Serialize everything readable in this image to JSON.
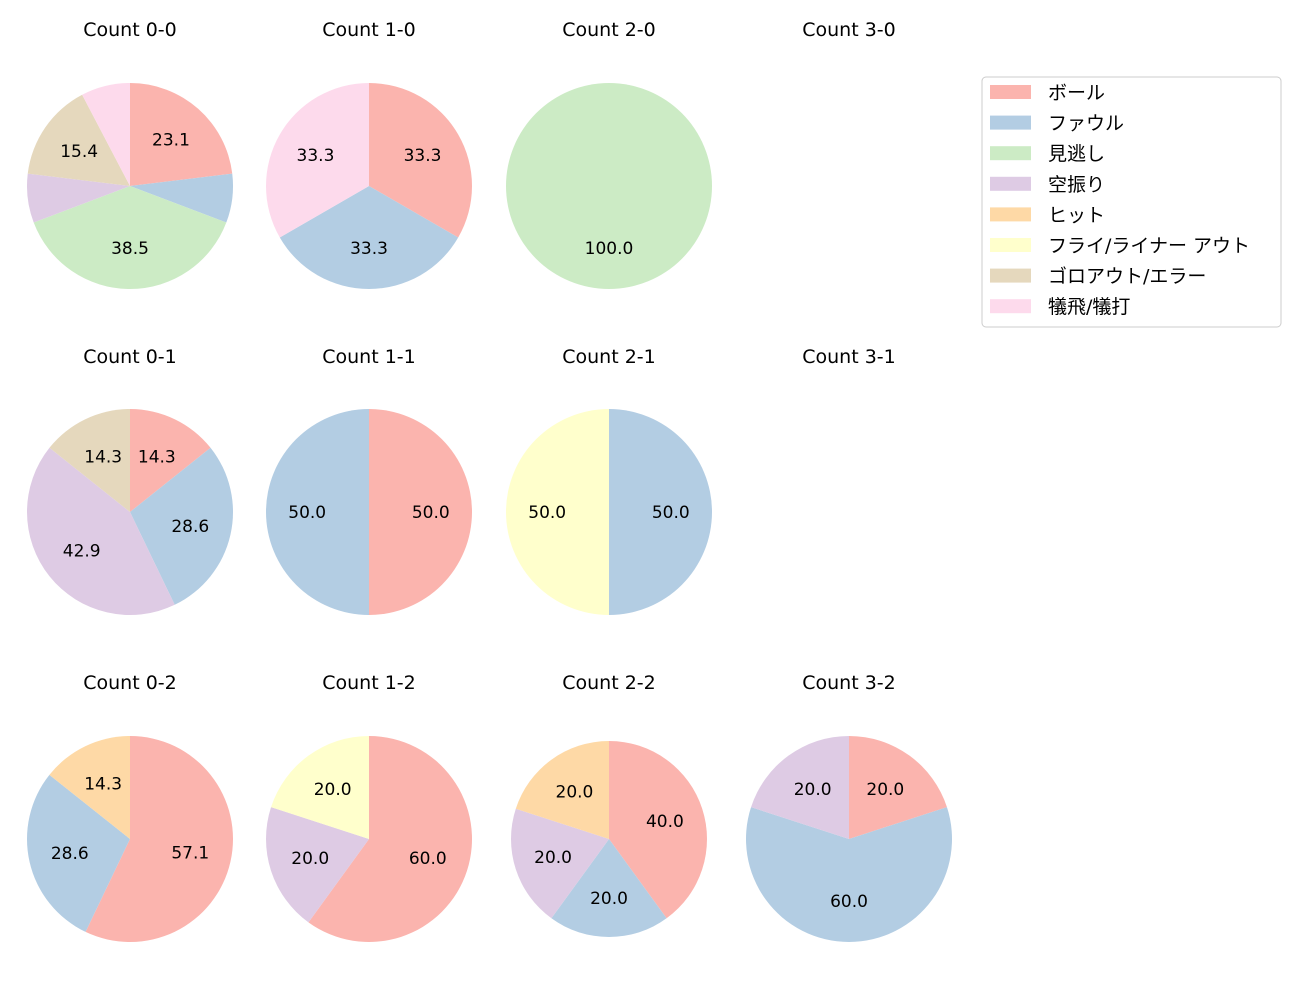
{
  "chart_data": [
    {
      "type": "pie",
      "title": "Count 0-0",
      "slices": [
        {
          "category": "ボール",
          "value": 23.1
        },
        {
          "category": "ファウル",
          "value": 7.7
        },
        {
          "category": "見逃し",
          "value": 38.5
        },
        {
          "category": "空振り",
          "value": 7.7
        },
        {
          "category": "ゴロアウト/エラー",
          "value": 15.4
        },
        {
          "category": "犠飛/犠打",
          "value": 7.7
        }
      ]
    },
    {
      "type": "pie",
      "title": "Count 1-0",
      "slices": [
        {
          "category": "ボール",
          "value": 33.3
        },
        {
          "category": "ファウル",
          "value": 33.3
        },
        {
          "category": "犠飛/犠打",
          "value": 33.3
        }
      ]
    },
    {
      "type": "pie",
      "title": "Count 2-0",
      "slices": [
        {
          "category": "見逃し",
          "value": 100.0
        }
      ]
    },
    {
      "type": "pie",
      "title": "Count 3-0",
      "slices": []
    },
    {
      "type": "pie",
      "title": "Count 0-1",
      "slices": [
        {
          "category": "ボール",
          "value": 14.3
        },
        {
          "category": "ファウル",
          "value": 28.6
        },
        {
          "category": "空振り",
          "value": 42.9
        },
        {
          "category": "ゴロアウト/エラー",
          "value": 14.3
        }
      ]
    },
    {
      "type": "pie",
      "title": "Count 1-1",
      "slices": [
        {
          "category": "ボール",
          "value": 50.0
        },
        {
          "category": "ファウル",
          "value": 50.0
        }
      ]
    },
    {
      "type": "pie",
      "title": "Count 2-1",
      "slices": [
        {
          "category": "ファウル",
          "value": 50.0
        },
        {
          "category": "フライ/ライナー アウト",
          "value": 50.0
        }
      ]
    },
    {
      "type": "pie",
      "title": "Count 3-1",
      "slices": []
    },
    {
      "type": "pie",
      "title": "Count 0-2",
      "slices": [
        {
          "category": "ボール",
          "value": 57.1
        },
        {
          "category": "ファウル",
          "value": 28.6
        },
        {
          "category": "ヒット",
          "value": 14.3
        }
      ]
    },
    {
      "type": "pie",
      "title": "Count 1-2",
      "slices": [
        {
          "category": "ボール",
          "value": 60.0
        },
        {
          "category": "空振り",
          "value": 20.0
        },
        {
          "category": "フライ/ライナー アウト",
          "value": 20.0
        }
      ]
    },
    {
      "type": "pie",
      "title": "Count 2-2",
      "slices": [
        {
          "category": "ボール",
          "value": 40.0
        },
        {
          "category": "ファウル",
          "value": 20.0
        },
        {
          "category": "空振り",
          "value": 20.0
        },
        {
          "category": "ヒット",
          "value": 20.0
        }
      ]
    },
    {
      "type": "pie",
      "title": "Count 3-2",
      "slices": [
        {
          "category": "ボール",
          "value": 20.0
        },
        {
          "category": "ファウル",
          "value": 60.0
        },
        {
          "category": "空振り",
          "value": 20.0
        }
      ]
    }
  ],
  "legend": {
    "placement": "right",
    "items": [
      {
        "label": "ボール",
        "color": "#fbb4ae"
      },
      {
        "label": "ファウル",
        "color": "#b3cde3"
      },
      {
        "label": "見逃し",
        "color": "#ccebc5"
      },
      {
        "label": "空振り",
        "color": "#decbe4"
      },
      {
        "label": "ヒット",
        "color": "#fed9a6"
      },
      {
        "label": "フライ/ライナー アウト",
        "color": "#ffffcc"
      },
      {
        "label": "ゴロアウト/エラー",
        "color": "#e5d8bd"
      },
      {
        "label": "犠飛/犠打",
        "color": "#fddaec"
      }
    ]
  },
  "label_threshold_percent": 10,
  "start_angle": "top",
  "direction": "clockwise"
}
